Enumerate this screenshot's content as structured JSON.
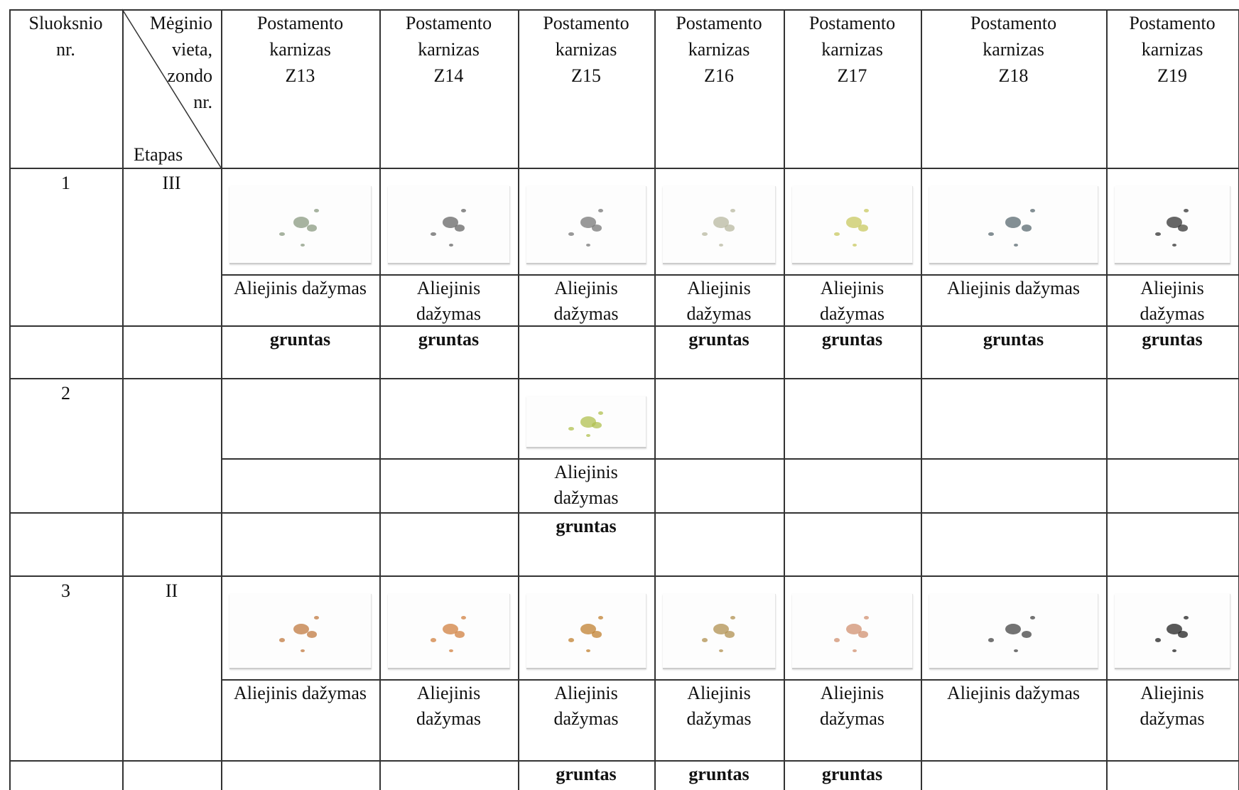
{
  "header": {
    "layer_no": [
      "Sluoksnio",
      "nr."
    ],
    "sample_place": [
      "Mėginio",
      "vieta,",
      "zondo",
      "nr."
    ],
    "stage": "Etapas",
    "columns": [
      [
        "Postamento",
        "karnizas",
        "Z13"
      ],
      [
        "Postamento",
        "karnizas",
        "Z14"
      ],
      [
        "Postamento",
        "karnizas",
        "Z15"
      ],
      [
        "Postamento",
        "karnizas",
        "Z16"
      ],
      [
        "Postamento",
        "karnizas",
        "Z17"
      ],
      [
        "Postamento",
        "karnizas",
        "Z18"
      ],
      [
        "Postamento",
        "karnizas",
        "Z19"
      ]
    ]
  },
  "layers": [
    {
      "number": "1",
      "stage": "III",
      "paint": [
        "Aliejinis dažymas",
        "Aliejinis dažymas",
        "Aliejinis dažymas",
        "Aliejinis dažymas",
        "Aliejinis dažymas",
        "Aliejinis dažymas",
        "Aliejinis dažymas"
      ],
      "ground": [
        "gruntas",
        "gruntas",
        null,
        "gruntas",
        "gruntas",
        "gruntas",
        "gruntas"
      ]
    },
    {
      "number": "2",
      "stage": null,
      "paint": [
        null,
        null,
        "Aliejinis dažymas",
        null,
        null,
        null,
        null
      ],
      "ground": [
        null,
        null,
        "gruntas",
        null,
        null,
        null,
        null
      ]
    },
    {
      "number": "3",
      "stage": "II",
      "paint": [
        "Aliejinis dažymas",
        "Aliejinis dažymas",
        "Aliejinis dažymas",
        "Aliejinis dažymas",
        "Aliejinis dažymas",
        "Aliejinis dažymas",
        "Aliejinis dažymas"
      ],
      "ground": [
        null,
        null,
        "gruntas",
        "gruntas",
        "gruntas",
        null,
        null
      ]
    }
  ]
}
